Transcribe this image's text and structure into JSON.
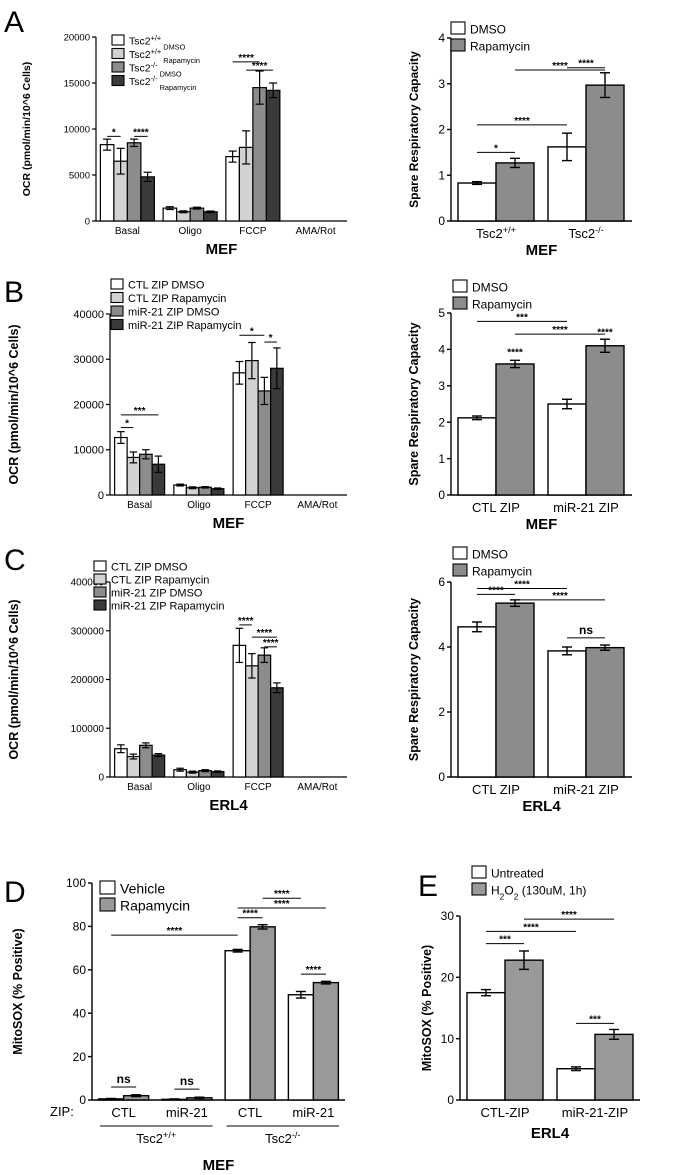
{
  "colors": {
    "white": "#ffffff",
    "light": "#d2d2d2",
    "mid": "#8c8c8c",
    "dark": "#3a3a3a",
    "gray": "#999999"
  },
  "panels": {
    "A": "A",
    "B": "B",
    "C": "C",
    "D": "D",
    "E": "E"
  },
  "chart_data": [
    {
      "id": "A-left",
      "type": "bar",
      "panel": "A",
      "ylabel": "OCR (pmol/min/10^6 Cells)",
      "xlabel": "MEF",
      "categories": [
        "Basal",
        "Oligo",
        "FCCP",
        "AMA/Rot"
      ],
      "ylim": [
        0,
        20000
      ],
      "yticks": [
        0,
        5000,
        10000,
        15000,
        20000
      ],
      "series": [
        {
          "name": "Tsc2+/+ DMSO",
          "legend": [
            [
              "Tsc2",
              "+/+",
              " DMSO"
            ]
          ],
          "values": [
            8300,
            1400,
            7000,
            0
          ],
          "errors": [
            600,
            150,
            600,
            0
          ]
        },
        {
          "name": "Tsc2+/+ Rapamycin",
          "legend": [
            [
              "Tsc2",
              "+/+",
              " Rapamycin"
            ]
          ],
          "values": [
            6500,
            1000,
            8000,
            0
          ],
          "errors": [
            1400,
            100,
            1800,
            0
          ]
        },
        {
          "name": "Tsc2-/- DMSO",
          "legend": [
            [
              "Tsc2",
              "-/-",
              " DMSO"
            ]
          ],
          "values": [
            8500,
            1400,
            14500,
            0
          ],
          "errors": [
            400,
            100,
            1800,
            0
          ]
        },
        {
          "name": "Tsc2-/- Rapamycin",
          "legend": [
            [
              "Tsc2",
              "-/-",
              " Rapamycin"
            ]
          ],
          "values": [
            4800,
            1000,
            14200,
            0
          ],
          "errors": [
            500,
            80,
            800,
            0
          ]
        }
      ],
      "sig": [
        {
          "from": [
            0,
            0
          ],
          "to": [
            0,
            1
          ],
          "y": 9200,
          "label": "*"
        },
        {
          "from": [
            0,
            2
          ],
          "to": [
            0,
            3
          ],
          "y": 9200,
          "label": "****"
        },
        {
          "from": [
            2,
            0
          ],
          "to": [
            2,
            2
          ],
          "y": 17300,
          "label": "****"
        },
        {
          "from": [
            2,
            1
          ],
          "to": [
            2,
            3
          ],
          "y": 16400,
          "label": "****"
        }
      ]
    },
    {
      "id": "A-right",
      "type": "bar",
      "panel": "A",
      "ylabel": "Spare Respiratory Capacity",
      "xlabel": "MEF",
      "categories": [
        [
          [
            "Tsc2",
            "+/+",
            ""
          ]
        ],
        [
          [
            "Tsc2",
            "-/-",
            ""
          ]
        ]
      ],
      "ylim": [
        0,
        4
      ],
      "yticks": [
        0,
        1,
        2,
        3,
        4
      ],
      "series": [
        {
          "name": "DMSO",
          "values": [
            0.83,
            1.62
          ],
          "errors": [
            0.03,
            0.3
          ]
        },
        {
          "name": "Rapamycin",
          "values": [
            1.27,
            2.97
          ],
          "errors": [
            0.1,
            0.27
          ]
        }
      ],
      "sig": [
        {
          "from": [
            0,
            0
          ],
          "to": [
            0,
            1
          ],
          "y": 1.5,
          "label": "*"
        },
        {
          "from": [
            0,
            0
          ],
          "to": [
            1,
            0
          ],
          "y": 2.1,
          "label": "****"
        },
        {
          "from": [
            0,
            1
          ],
          "to": [
            1,
            1
          ],
          "y": 3.3,
          "label": "****"
        },
        {
          "from": [
            1,
            0
          ],
          "to": [
            1,
            1
          ],
          "y": 3.35,
          "label": "****"
        }
      ]
    },
    {
      "id": "B-left",
      "type": "bar",
      "panel": "B",
      "ylabel": "OCR (pmol/min/10^6 Cells)",
      "xlabel": "MEF",
      "categories": [
        "Basal",
        "Oligo",
        "FCCP",
        "AMA/Rot"
      ],
      "ylim": [
        0,
        40000
      ],
      "yticks": [
        0,
        10000,
        20000,
        30000,
        40000
      ],
      "series": [
        {
          "name": "CTL ZIP DMSO",
          "values": [
            12700,
            2200,
            27000,
            0
          ],
          "errors": [
            1300,
            200,
            2500,
            0
          ]
        },
        {
          "name": "CTL ZIP Rapamycin",
          "values": [
            8300,
            1600,
            29700,
            0
          ],
          "errors": [
            1200,
            200,
            4000,
            0
          ]
        },
        {
          "name": "miR-21 ZIP DMSO",
          "values": [
            9000,
            1700,
            23000,
            0
          ],
          "errors": [
            1000,
            150,
            3000,
            0
          ]
        },
        {
          "name": "miR-21 ZIP Rapamycin",
          "values": [
            6800,
            1400,
            28000,
            0
          ],
          "errors": [
            1800,
            150,
            4500,
            0
          ]
        }
      ],
      "sig": [
        {
          "from": [
            0,
            0
          ],
          "to": [
            0,
            1
          ],
          "y": 14900,
          "label": "*"
        },
        {
          "from": [
            0,
            0
          ],
          "to": [
            0,
            3
          ],
          "y": 17700,
          "label": "***"
        },
        {
          "from": [
            2,
            0
          ],
          "to": [
            2,
            2
          ],
          "y": 35300,
          "label": "*"
        },
        {
          "from": [
            2,
            2
          ],
          "to": [
            2,
            3
          ],
          "y": 33800,
          "label": "*"
        }
      ]
    },
    {
      "id": "B-right",
      "type": "bar",
      "panel": "B",
      "ylabel": "Spare Respiratory Capacity",
      "xlabel": "MEF",
      "categories": [
        "CTL ZIP",
        "miR-21 ZIP"
      ],
      "ylim": [
        0,
        5
      ],
      "yticks": [
        0,
        1,
        2,
        3,
        4,
        5
      ],
      "series": [
        {
          "name": "DMSO",
          "values": [
            2.12,
            2.5
          ],
          "errors": [
            0.05,
            0.13
          ]
        },
        {
          "name": "Rapamycin",
          "values": [
            3.6,
            4.1
          ],
          "errors": [
            0.1,
            0.18
          ]
        }
      ],
      "sig": [
        {
          "from": [
            0,
            0
          ],
          "to": [
            1,
            0
          ],
          "y": 4.77,
          "label": "***"
        },
        {
          "from": [
            0,
            1
          ],
          "to": [
            1,
            1
          ],
          "y": 4.42,
          "label": "****"
        },
        {
          "from": [
            0,
            1
          ],
          "to": [
            0,
            1
          ],
          "y": 3.8,
          "label": "****",
          "bare": true
        },
        {
          "from": [
            1,
            1
          ],
          "to": [
            1,
            1
          ],
          "y": 4.35,
          "label": "****",
          "bare": true
        }
      ]
    },
    {
      "id": "C-left",
      "type": "bar",
      "panel": "C",
      "ylabel": "OCR (pmol/min/10^6 Cells)",
      "xlabel": "ERL4",
      "categories": [
        "Basal",
        "Oligo",
        "FCCP",
        "AMA/Rot"
      ],
      "ylim": [
        0,
        400000
      ],
      "yticks": [
        0,
        100000,
        200000,
        300000,
        400000
      ],
      "series": [
        {
          "name": "CTL ZIP DMSO",
          "values": [
            58000,
            15000,
            270000,
            0
          ],
          "errors": [
            8000,
            3000,
            35000,
            0
          ]
        },
        {
          "name": "CTL ZIP Rapamycin",
          "values": [
            42000,
            10000,
            228000,
            0
          ],
          "errors": [
            5000,
            2000,
            25000,
            0
          ]
        },
        {
          "name": "miR-21 ZIP DMSO",
          "values": [
            65000,
            13000,
            250000,
            0
          ],
          "errors": [
            5000,
            2000,
            15000,
            0
          ]
        },
        {
          "name": "miR-21 ZIP Rapamycin",
          "values": [
            45000,
            11000,
            183000,
            0
          ],
          "errors": [
            3000,
            1500,
            10000,
            0
          ]
        }
      ],
      "sig": [
        {
          "from": [
            2,
            0
          ],
          "to": [
            2,
            1
          ],
          "y": 312000,
          "label": "****"
        },
        {
          "from": [
            2,
            1
          ],
          "to": [
            2,
            3
          ],
          "y": 287000,
          "label": "****"
        },
        {
          "from": [
            2,
            2
          ],
          "to": [
            2,
            3
          ],
          "y": 267000,
          "label": "****"
        }
      ]
    },
    {
      "id": "C-right",
      "type": "bar",
      "panel": "C",
      "ylabel": "Spare Respiratory Capacity",
      "xlabel": "ERL4",
      "categories": [
        "CTL ZIP",
        "miR-21 ZIP"
      ],
      "ylim": [
        0,
        6
      ],
      "yticks": [
        0,
        2,
        4,
        6
      ],
      "series": [
        {
          "name": "DMSO",
          "values": [
            4.62,
            3.88
          ],
          "errors": [
            0.15,
            0.12
          ]
        },
        {
          "name": "Rapamycin",
          "values": [
            5.35,
            3.98
          ],
          "errors": [
            0.1,
            0.08
          ]
        }
      ],
      "sig": [
        {
          "from": [
            0,
            0
          ],
          "to": [
            1,
            0
          ],
          "y": 5.8,
          "label": "****"
        },
        {
          "from": [
            0,
            0
          ],
          "to": [
            0,
            1
          ],
          "y": 5.62,
          "label": "****"
        },
        {
          "from": [
            0,
            1
          ],
          "to": [
            1,
            1
          ],
          "y": 5.45,
          "label": "****"
        },
        {
          "from": [
            1,
            0
          ],
          "to": [
            1,
            1
          ],
          "y": 4.28,
          "label": "ns"
        }
      ]
    },
    {
      "id": "D",
      "type": "bar",
      "panel": "D",
      "ylabel": "MitoSOX (% Positive)",
      "xlabel": "MEF",
      "categories": [
        "CTL",
        "miR-21",
        "CTL",
        "miR-21"
      ],
      "zip_label": "ZIP:",
      "groups": [
        [
          [
            "Tsc2",
            "+/+",
            ""
          ]
        ],
        [
          [
            "Tsc2",
            "-/-",
            ""
          ]
        ]
      ],
      "ylim": [
        0,
        100
      ],
      "yticks": [
        0,
        20,
        40,
        60,
        80,
        100
      ],
      "series": [
        {
          "name": "Vehicle",
          "values": [
            0.5,
            0.3,
            68.8,
            48.5
          ],
          "errors": [
            0.2,
            0.2,
            0.6,
            1.5
          ]
        },
        {
          "name": "Rapamycin",
          "values": [
            2,
            1,
            79.8,
            54.1
          ],
          "errors": [
            0.4,
            0.3,
            1,
            0.6
          ]
        }
      ],
      "sig": [
        {
          "from": [
            0,
            0
          ],
          "to": [
            0,
            1
          ],
          "y": 6,
          "label": "ns"
        },
        {
          "from": [
            1,
            0
          ],
          "to": [
            1,
            1
          ],
          "y": 5,
          "label": "ns"
        },
        {
          "from": [
            0,
            0
          ],
          "to": [
            2,
            0
          ],
          "y": 76,
          "label": "****"
        },
        {
          "from": [
            2,
            0
          ],
          "to": [
            2,
            1
          ],
          "y": 84,
          "label": "****"
        },
        {
          "from": [
            2,
            0
          ],
          "to": [
            3,
            1
          ],
          "y": 88.5,
          "label": "****"
        },
        {
          "from": [
            2,
            1
          ],
          "to": [
            3,
            0
          ],
          "y": 93,
          "label": "****"
        },
        {
          "from": [
            3,
            0
          ],
          "to": [
            3,
            1
          ],
          "y": 58,
          "label": "****"
        }
      ]
    },
    {
      "id": "E",
      "type": "bar",
      "panel": "E",
      "ylabel": "MitoSOX (% Positive)",
      "xlabel": "ERL4",
      "categories": [
        "CTL-ZIP",
        "miR-21-ZIP"
      ],
      "ylim": [
        0,
        30
      ],
      "yticks": [
        0,
        10,
        20,
        30
      ],
      "series": [
        {
          "name": "Untreated",
          "values": [
            17.5,
            5.1
          ],
          "errors": [
            0.5,
            0.3
          ]
        },
        {
          "name": "H2O2 (130uM, 1h)",
          "legend": [
            [
              "H",
              "",
              "2"
            ],
            [
              "O",
              "",
              "2"
            ],
            [
              " (130uM, 1h)",
              "",
              ""
            ]
          ],
          "values": [
            22.8,
            10.7
          ],
          "errors": [
            1.5,
            0.8
          ]
        }
      ],
      "sig": [
        {
          "from": [
            0,
            0
          ],
          "to": [
            0,
            1
          ],
          "y": 25.5,
          "label": "***"
        },
        {
          "from": [
            0,
            0
          ],
          "to": [
            1,
            0
          ],
          "y": 27.5,
          "label": "****"
        },
        {
          "from": [
            0,
            1
          ],
          "to": [
            1,
            1
          ],
          "y": 29.5,
          "label": "****"
        },
        {
          "from": [
            1,
            0
          ],
          "to": [
            1,
            1
          ],
          "y": 12.5,
          "label": "***"
        }
      ]
    }
  ]
}
